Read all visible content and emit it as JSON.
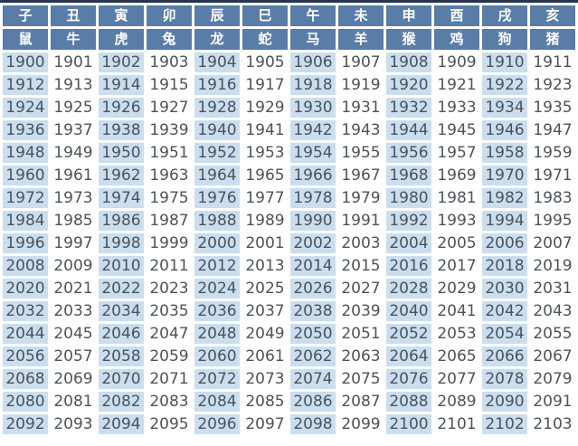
{
  "table": {
    "branch_headers": [
      "子",
      "丑",
      "寅",
      "卯",
      "辰",
      "巳",
      "午",
      "未",
      "申",
      "酉",
      "戌",
      "亥"
    ],
    "animal_headers": [
      "鼠",
      "牛",
      "虎",
      "兔",
      "龙",
      "蛇",
      "马",
      "羊",
      "猴",
      "鸡",
      "狗",
      "猪"
    ],
    "year_rows": [
      [
        1900,
        1901,
        1902,
        1903,
        1904,
        1905,
        1906,
        1907,
        1908,
        1909,
        1910,
        1911
      ],
      [
        1912,
        1913,
        1914,
        1915,
        1916,
        1917,
        1918,
        1919,
        1920,
        1921,
        1922,
        1923
      ],
      [
        1924,
        1925,
        1926,
        1927,
        1928,
        1929,
        1930,
        1931,
        1932,
        1933,
        1934,
        1935
      ],
      [
        1936,
        1937,
        1938,
        1939,
        1940,
        1941,
        1942,
        1943,
        1944,
        1945,
        1946,
        1947
      ],
      [
        1948,
        1949,
        1950,
        1951,
        1952,
        1953,
        1954,
        1955,
        1956,
        1957,
        1958,
        1959
      ],
      [
        1960,
        1961,
        1962,
        1963,
        1964,
        1965,
        1966,
        1967,
        1968,
        1969,
        1970,
        1971
      ],
      [
        1972,
        1973,
        1974,
        1975,
        1976,
        1977,
        1978,
        1979,
        1980,
        1981,
        1982,
        1983
      ],
      [
        1984,
        1985,
        1986,
        1987,
        1988,
        1989,
        1990,
        1991,
        1992,
        1993,
        1994,
        1995
      ],
      [
        1996,
        1997,
        1998,
        1999,
        2000,
        2001,
        2002,
        2003,
        2004,
        2005,
        2006,
        2007
      ],
      [
        2008,
        2009,
        2010,
        2011,
        2012,
        2013,
        2014,
        2015,
        2016,
        2017,
        2018,
        2019
      ],
      [
        2020,
        2021,
        2022,
        2023,
        2024,
        2025,
        2026,
        2027,
        2028,
        2029,
        2030,
        2031
      ],
      [
        2032,
        2033,
        2034,
        2035,
        2036,
        2037,
        2038,
        2039,
        2040,
        2041,
        2042,
        2043
      ],
      [
        2044,
        2045,
        2046,
        2047,
        2048,
        2049,
        2050,
        2051,
        2052,
        2053,
        2054,
        2055
      ],
      [
        2056,
        2057,
        2058,
        2059,
        2060,
        2061,
        2062,
        2063,
        2064,
        2065,
        2066,
        2067
      ],
      [
        2068,
        2069,
        2070,
        2071,
        2072,
        2073,
        2074,
        2075,
        2076,
        2077,
        2078,
        2079
      ],
      [
        2080,
        2081,
        2082,
        2083,
        2084,
        2085,
        2086,
        2087,
        2088,
        2089,
        2090,
        2091
      ],
      [
        2092,
        2093,
        2094,
        2095,
        2096,
        2097,
        2098,
        2099,
        2100,
        2101,
        2102,
        2103
      ]
    ]
  },
  "colors": {
    "header_bg": "#5a7da7",
    "header_text": "#ffffff",
    "odd_col_bg": "#cbdeef",
    "even_col_bg": "#ffffff",
    "year_text": "#4c5359",
    "gap": "#ffffff",
    "top_border": "#24364f"
  }
}
